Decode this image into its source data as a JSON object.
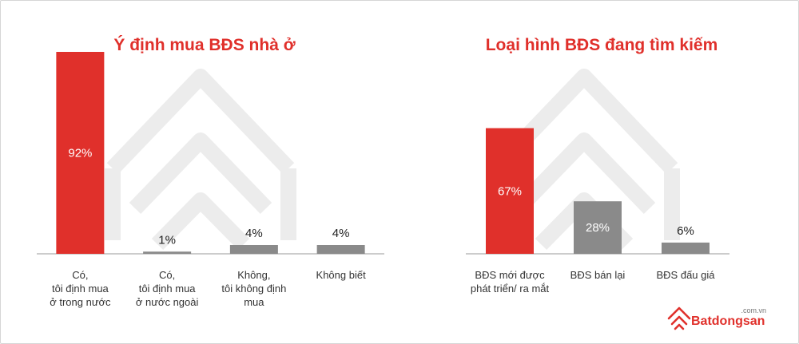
{
  "colors": {
    "accent": "#e0302b",
    "neutral": "#8a8a8a",
    "axis": "#9a9a9a",
    "text": "#333333",
    "watermark": "#ececec"
  },
  "chart_data": [
    {
      "type": "bar",
      "title": "Ý định mua BĐS nhà ở",
      "categories": [
        [
          "Có,",
          "tôi định mua",
          "ở trong nước"
        ],
        [
          "Có,",
          "tôi định mua",
          "ở nước ngoài"
        ],
        [
          "Không,",
          "tôi không định",
          "mua"
        ],
        [
          "Không biết"
        ]
      ],
      "values": [
        92,
        1,
        4,
        4
      ],
      "value_labels": [
        "92%",
        "1%",
        "4%",
        "4%"
      ],
      "bar_colors": [
        "#e0302b",
        "#8a8a8a",
        "#8a8a8a",
        "#8a8a8a"
      ],
      "ylim": [
        0,
        100
      ],
      "grid": false,
      "legend": "none"
    },
    {
      "type": "bar",
      "title": "Loại hình BĐS đang tìm kiếm",
      "categories": [
        [
          "BĐS mới được",
          "phát triển/ ra mắt"
        ],
        [
          "BĐS bán lại"
        ],
        [
          "BĐS đấu giá"
        ]
      ],
      "values": [
        67,
        28,
        6
      ],
      "value_labels": [
        "67%",
        "28%",
        "6%"
      ],
      "bar_colors": [
        "#e0302b",
        "#8a8a8a",
        "#8a8a8a"
      ],
      "ylim": [
        0,
        100
      ],
      "grid": false,
      "legend": "none"
    }
  ],
  "logo": {
    "name": "Batdongsan",
    "suffix": ".com.vn",
    "icon": "house-stack-icon"
  }
}
